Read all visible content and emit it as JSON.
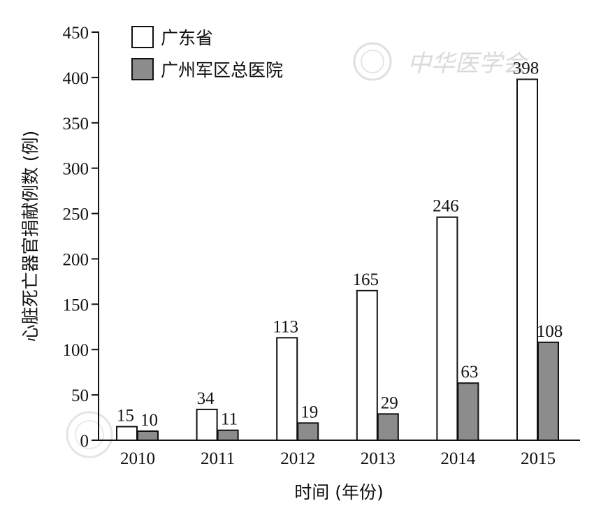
{
  "chart_data": {
    "type": "bar",
    "categories": [
      "2010",
      "2011",
      "2012",
      "2013",
      "2014",
      "2015"
    ],
    "series": [
      {
        "name": "广东省",
        "values": [
          15,
          34,
          113,
          165,
          246,
          398
        ],
        "color": "#ffffff"
      },
      {
        "name": "广州军区总医院",
        "values": [
          10,
          11,
          19,
          29,
          63,
          108
        ],
        "color": "#8c8c8c"
      }
    ],
    "xlabel": "时间 (年份)",
    "ylabel": "心脏死亡器官捐献例数 (例)",
    "ylim": [
      0,
      450
    ],
    "yticks": [
      0,
      50,
      100,
      150,
      200,
      250,
      300,
      350,
      400,
      450
    ],
    "grid": false,
    "legend_position": "top-left"
  },
  "watermark": {
    "text": "中华医学会"
  }
}
